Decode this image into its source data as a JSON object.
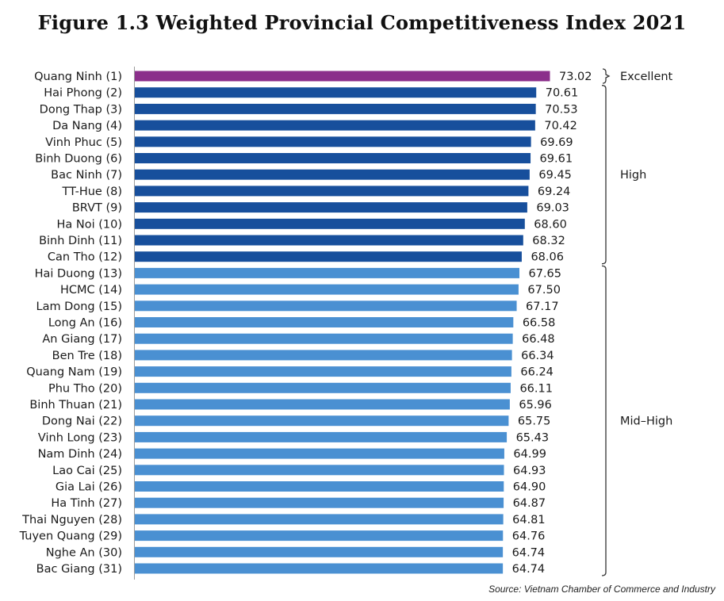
{
  "chart_data": {
    "type": "bar",
    "orientation": "horizontal",
    "title": "Figure 1.3 Weighted Provincial Competitiveness Index 2021",
    "source": "Source: Vietnam Chamber of Commerce and Industry",
    "categories": [
      "Quang Ninh (1)",
      "Hai Phong (2)",
      "Dong Thap (3)",
      "Da Nang (4)",
      "Vinh Phuc (5)",
      "Binh Duong (6)",
      "Bac Ninh (7)",
      "TT-Hue (8)",
      "BRVT (9)",
      "Ha Noi (10)",
      "Binh Dinh (11)",
      "Can Tho (12)",
      "Hai Duong (13)",
      "HCMC (14)",
      "Lam Dong (15)",
      "Long An (16)",
      "An Giang (17)",
      "Ben Tre (18)",
      "Quang Nam (19)",
      "Phu Tho (20)",
      "Binh Thuan (21)",
      "Dong Nai (22)",
      "Vinh Long (23)",
      "Nam Dinh (24)",
      "Lao Cai (25)",
      "Gia Lai (26)",
      "Ha Tinh (27)",
      "Thai Nguyen (28)",
      "Tuyen Quang (29)",
      "Nghe An (30)",
      "Bac Giang (31)"
    ],
    "values": [
      73.02,
      70.61,
      70.53,
      70.42,
      69.69,
      69.61,
      69.45,
      69.24,
      69.03,
      68.6,
      68.32,
      68.06,
      67.65,
      67.5,
      67.17,
      66.58,
      66.48,
      66.34,
      66.24,
      66.11,
      65.96,
      65.75,
      65.43,
      64.99,
      64.93,
      64.9,
      64.87,
      64.81,
      64.76,
      64.74,
      64.74
    ],
    "value_labels": [
      "73.02",
      "70.61",
      "70.53",
      "70.42",
      "69.69",
      "69.61",
      "69.45",
      "69.24",
      "69.03",
      "68.60",
      "68.32",
      "68.06",
      "67.65",
      "67.50",
      "67.17",
      "66.58",
      "66.48",
      "66.34",
      "66.24",
      "66.11",
      "65.96",
      "65.75",
      "65.43",
      "64.99",
      "64.93",
      "64.90",
      "64.87",
      "64.81",
      "64.76",
      "64.74",
      "64.74"
    ],
    "groups": [
      {
        "label": "Excellent",
        "first": 0,
        "last": 0,
        "color": "#8b2f8b"
      },
      {
        "label": "High",
        "first": 1,
        "last": 11,
        "color": "#174f9c"
      },
      {
        "label": "Mid–High",
        "first": 12,
        "last": 30,
        "color": "#4a90d2"
      }
    ],
    "xlim": [
      0,
      73.02
    ],
    "grid": false,
    "legend": "none"
  }
}
